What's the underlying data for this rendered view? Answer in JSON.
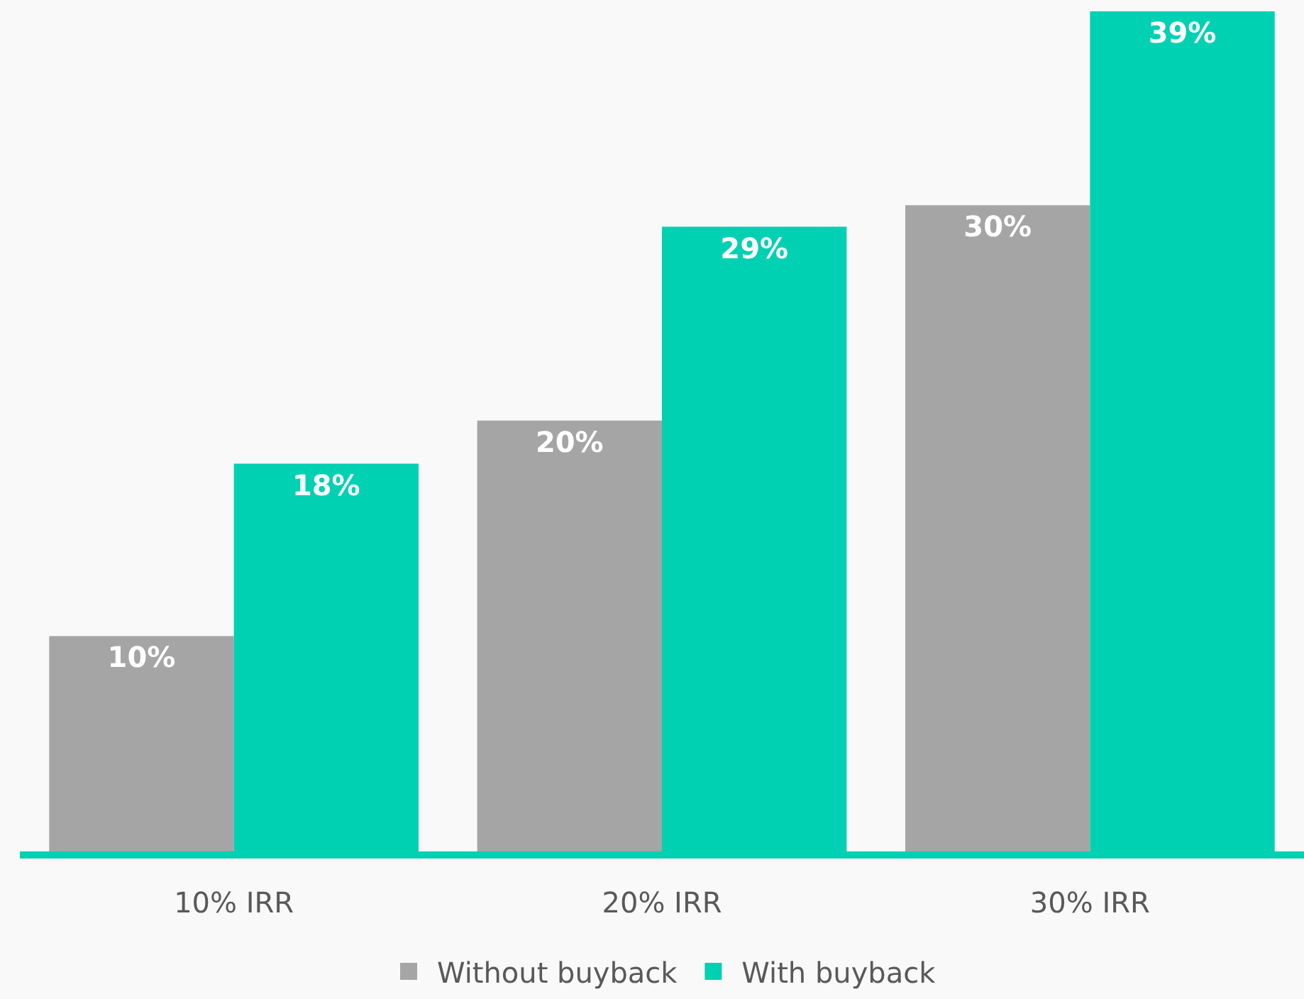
{
  "chart_data": {
    "type": "bar",
    "categories": [
      "10% IRR",
      "20% IRR",
      "30% IRR"
    ],
    "series": [
      {
        "name": "Without buyback",
        "color": "#a5a5a5",
        "values": [
          10,
          20,
          30
        ],
        "value_labels": [
          "10%",
          "20%",
          "30%"
        ]
      },
      {
        "name": "With buyback",
        "color": "#00d1b2",
        "values": [
          18,
          29,
          39
        ],
        "value_labels": [
          "18%",
          "29%",
          "39%"
        ]
      }
    ],
    "legend": "bottom"
  }
}
